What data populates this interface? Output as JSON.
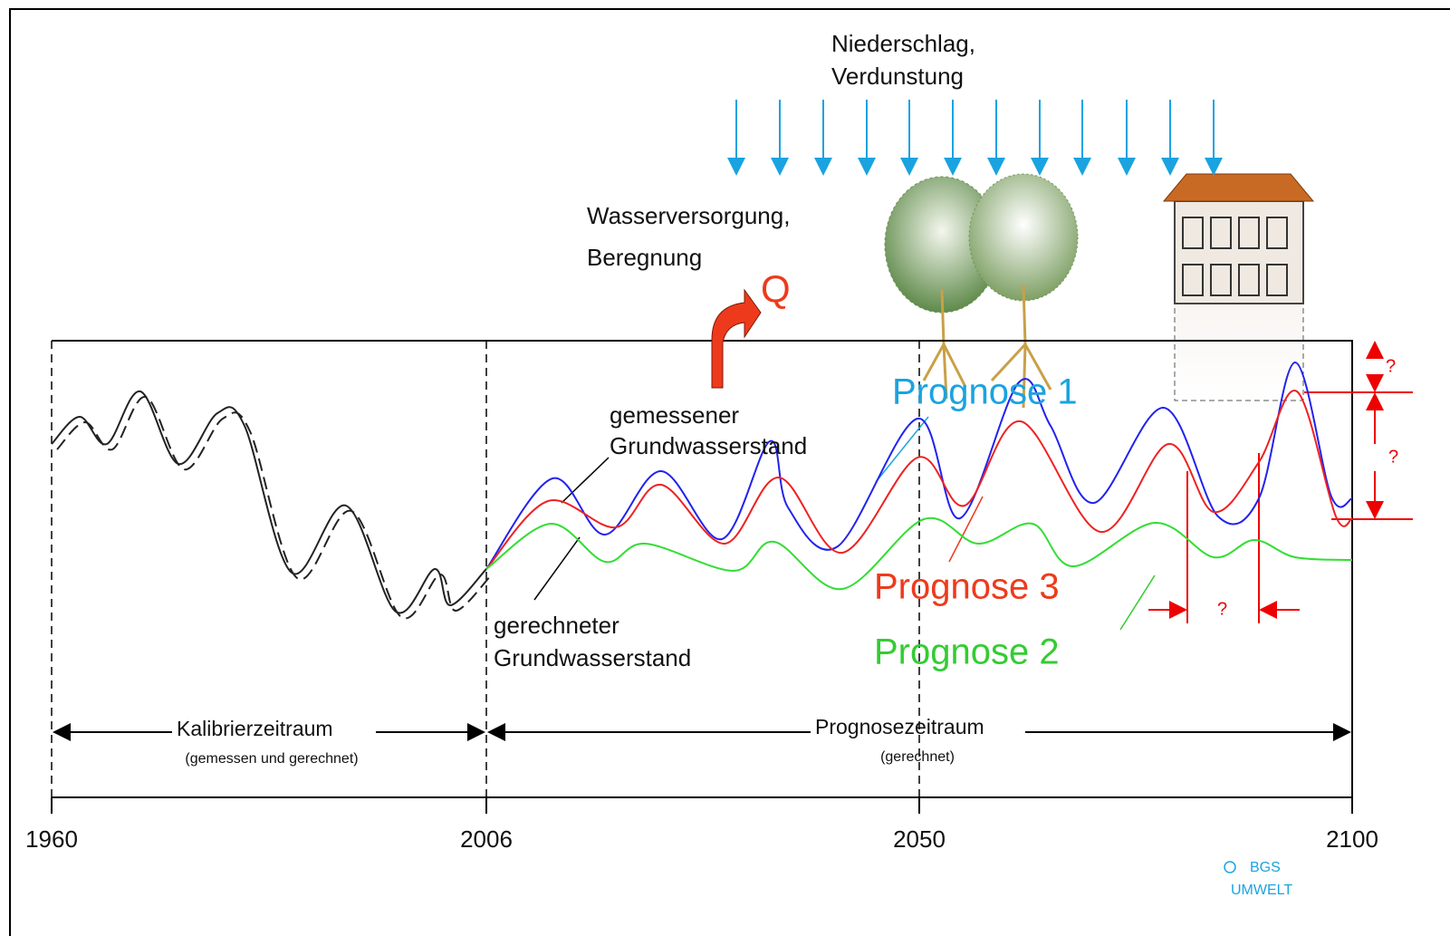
{
  "inputs": {
    "climate": [
      "Niederschlag,",
      "Verdunstung"
    ],
    "withdrawal": [
      "Wasserversorgung,",
      "Beregnung"
    ],
    "withdrawal_symbol": "Q"
  },
  "curve_labels": {
    "measured": [
      "gemessener",
      "Grundwasserstand"
    ],
    "computed": [
      "gerechneter",
      "Grundwasserstand"
    ]
  },
  "forecasts": [
    {
      "name": "Prognose 1",
      "color": "#1aa3e0"
    },
    {
      "name": "Prognose 3",
      "color": "#ee3a1c"
    },
    {
      "name": "Prognose 2",
      "color": "#33cc33"
    }
  ],
  "periods": {
    "calibration": {
      "name": "Kalibrierzeitraum",
      "note": "(gemessen und gerechnet)"
    },
    "forecast": {
      "name": "Prognosezeitraum",
      "note": "(gerechnet)"
    }
  },
  "axis_labels": [
    "1960",
    "2006",
    "2050",
    "2100"
  ],
  "uncertainty_marks": [
    "?",
    "?",
    "?"
  ],
  "credit": [
    "BGS",
    "UMWELT"
  ]
}
